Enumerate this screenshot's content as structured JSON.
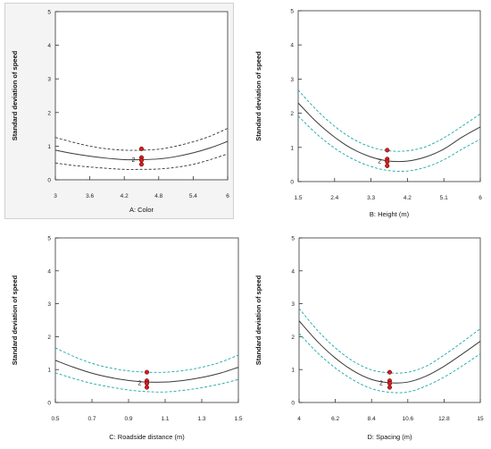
{
  "chart_data": [
    {
      "type": "line",
      "title": "",
      "xlabel": "A: Color",
      "ylabel": "Standard deviation of speed",
      "xlim": [
        3,
        6
      ],
      "ylim": [
        0,
        5
      ],
      "xticks": [
        "3",
        "3.6",
        "4.2",
        "4.8",
        "5.4",
        "6"
      ],
      "yticks": [
        "0",
        "1",
        "2",
        "3",
        "4",
        "5"
      ],
      "grid": false,
      "band_color": "#333333",
      "series": [
        {
          "role": "mean",
          "x": [
            3,
            3.3,
            3.6,
            3.9,
            4.2,
            4.5,
            4.8,
            5.1,
            5.4,
            5.7,
            6
          ],
          "y": [
            0.88,
            0.78,
            0.7,
            0.64,
            0.6,
            0.6,
            0.62,
            0.69,
            0.8,
            0.95,
            1.14
          ]
        },
        {
          "role": "upper",
          "x": [
            3,
            3.3,
            3.6,
            3.9,
            4.2,
            4.5,
            4.8,
            5.1,
            5.4,
            5.7,
            6
          ],
          "y": [
            1.26,
            1.12,
            1.0,
            0.92,
            0.88,
            0.88,
            0.91,
            1.0,
            1.13,
            1.3,
            1.53
          ]
        },
        {
          "role": "lower",
          "x": [
            3,
            3.3,
            3.6,
            3.9,
            4.2,
            4.5,
            4.8,
            5.1,
            5.4,
            5.7,
            6
          ],
          "y": [
            0.5,
            0.43,
            0.38,
            0.34,
            0.31,
            0.31,
            0.32,
            0.37,
            0.46,
            0.6,
            0.77
          ]
        }
      ],
      "points": [
        {
          "x": 4.5,
          "y": 0.92
        },
        {
          "x": 4.5,
          "y": 0.66
        },
        {
          "x": 4.5,
          "y": 0.58
        },
        {
          "x": 4.5,
          "y": 0.46
        }
      ],
      "annotation": {
        "text": "2",
        "x": 4.42,
        "y": 0.6
      }
    },
    {
      "type": "line",
      "title": "",
      "xlabel": "B: Height (m)",
      "ylabel": "Standard deviation of speed",
      "xlim": [
        1.5,
        6
      ],
      "ylim": [
        0,
        5
      ],
      "xticks": [
        "1.5",
        "2.4",
        "3.3",
        "4.2",
        "5.1",
        "6"
      ],
      "yticks": [
        "0",
        "1",
        "2",
        "3",
        "4",
        "5"
      ],
      "grid": false,
      "band_color": "#1aa7a7",
      "series": [
        {
          "role": "mean",
          "x": [
            1.5,
            1.95,
            2.4,
            2.85,
            3.3,
            3.75,
            4.2,
            4.65,
            5.1,
            5.55,
            6
          ],
          "y": [
            2.3,
            1.75,
            1.3,
            0.95,
            0.72,
            0.6,
            0.6,
            0.72,
            0.95,
            1.3,
            1.6
          ]
        },
        {
          "role": "upper",
          "x": [
            1.5,
            1.95,
            2.4,
            2.85,
            3.3,
            3.75,
            4.2,
            4.65,
            5.1,
            5.55,
            6
          ],
          "y": [
            2.68,
            2.1,
            1.62,
            1.25,
            1.01,
            0.9,
            0.9,
            1.02,
            1.28,
            1.62,
            1.98
          ]
        },
        {
          "role": "lower",
          "x": [
            1.5,
            1.95,
            2.4,
            2.85,
            3.3,
            3.75,
            4.2,
            4.65,
            5.1,
            5.55,
            6
          ],
          "y": [
            1.92,
            1.4,
            0.98,
            0.66,
            0.44,
            0.32,
            0.31,
            0.42,
            0.64,
            0.95,
            1.24
          ]
        }
      ],
      "points": [
        {
          "x": 3.7,
          "y": 0.92
        },
        {
          "x": 3.7,
          "y": 0.66
        },
        {
          "x": 3.7,
          "y": 0.58
        },
        {
          "x": 3.7,
          "y": 0.46
        }
      ],
      "annotation": {
        "text": "2",
        "x": 3.6,
        "y": 0.6
      }
    },
    {
      "type": "line",
      "title": "",
      "xlabel": "C: Roadside distance (m)",
      "ylabel": "Standard deviation of speed",
      "xlim": [
        0.5,
        1.5
      ],
      "ylim": [
        0,
        5
      ],
      "xticks": [
        "0.5",
        "0.7",
        "0.9",
        "1.1",
        "1.3",
        "1.5"
      ],
      "yticks": [
        "0",
        "1",
        "2",
        "3",
        "4",
        "5"
      ],
      "grid": false,
      "band_color": "#1aa7a7",
      "series": [
        {
          "role": "mean",
          "x": [
            0.5,
            0.6,
            0.7,
            0.8,
            0.9,
            1.0,
            1.1,
            1.2,
            1.3,
            1.4,
            1.5
          ],
          "y": [
            1.28,
            1.07,
            0.89,
            0.76,
            0.67,
            0.62,
            0.62,
            0.67,
            0.76,
            0.89,
            1.07
          ]
        },
        {
          "role": "upper",
          "x": [
            0.5,
            0.6,
            0.7,
            0.8,
            0.9,
            1.0,
            1.1,
            1.2,
            1.3,
            1.4,
            1.5
          ],
          "y": [
            1.66,
            1.4,
            1.19,
            1.05,
            0.96,
            0.92,
            0.92,
            0.97,
            1.07,
            1.22,
            1.44
          ]
        },
        {
          "role": "lower",
          "x": [
            0.5,
            0.6,
            0.7,
            0.8,
            0.9,
            1.0,
            1.1,
            1.2,
            1.3,
            1.4,
            1.5
          ],
          "y": [
            0.9,
            0.73,
            0.58,
            0.47,
            0.38,
            0.33,
            0.32,
            0.37,
            0.45,
            0.56,
            0.7
          ]
        }
      ],
      "points": [
        {
          "x": 1.0,
          "y": 0.92
        },
        {
          "x": 1.0,
          "y": 0.66
        },
        {
          "x": 1.0,
          "y": 0.58
        },
        {
          "x": 1.0,
          "y": 0.46
        }
      ],
      "annotation": {
        "text": "2",
        "x": 0.98,
        "y": 0.6
      }
    },
    {
      "type": "line",
      "title": "",
      "xlabel": "D: Spacing (m)",
      "ylabel": "Standard deviation of speed",
      "xlim": [
        4,
        15
      ],
      "ylim": [
        0,
        5
      ],
      "xticks": [
        "4",
        "6.2",
        "8.4",
        "10.6",
        "12.8",
        "15"
      ],
      "yticks": [
        "0",
        "1",
        "2",
        "3",
        "4",
        "5"
      ],
      "grid": false,
      "band_color": "#1aa7a7",
      "series": [
        {
          "role": "mean",
          "x": [
            4,
            5.1,
            6.2,
            7.3,
            8.4,
            9.5,
            10.6,
            11.7,
            12.8,
            13.9,
            15
          ],
          "y": [
            2.48,
            1.86,
            1.35,
            0.96,
            0.7,
            0.6,
            0.62,
            0.8,
            1.1,
            1.47,
            1.86
          ]
        },
        {
          "role": "upper",
          "x": [
            4,
            5.1,
            6.2,
            7.3,
            8.4,
            9.5,
            10.6,
            11.7,
            12.8,
            13.9,
            15
          ],
          "y": [
            2.86,
            2.2,
            1.66,
            1.25,
            0.99,
            0.9,
            0.92,
            1.1,
            1.44,
            1.83,
            2.24
          ]
        },
        {
          "role": "lower",
          "x": [
            4,
            5.1,
            6.2,
            7.3,
            8.4,
            9.5,
            10.6,
            11.7,
            12.8,
            13.9,
            15
          ],
          "y": [
            2.1,
            1.52,
            1.05,
            0.68,
            0.42,
            0.31,
            0.32,
            0.5,
            0.77,
            1.11,
            1.48
          ]
        }
      ],
      "points": [
        {
          "x": 9.5,
          "y": 0.92
        },
        {
          "x": 9.5,
          "y": 0.66
        },
        {
          "x": 9.5,
          "y": 0.58
        },
        {
          "x": 9.5,
          "y": 0.46
        }
      ],
      "annotation": {
        "text": "2",
        "x": 9.2,
        "y": 0.6
      }
    }
  ]
}
